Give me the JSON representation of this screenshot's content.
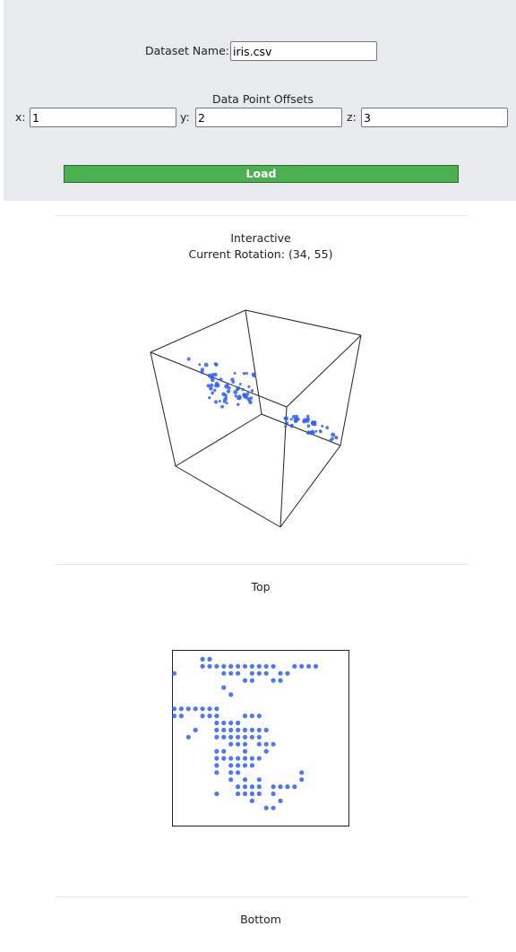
{
  "form": {
    "dataset_label": "Dataset Name:",
    "dataset_value": "iris.csv",
    "offsets_heading": "Data Point Offsets",
    "x_label": "x:",
    "x_value": "1",
    "y_label": "y:",
    "y_value": "2",
    "z_label": "z:",
    "z_value": "3",
    "load_label": "Load"
  },
  "interactive": {
    "title": "Interactive",
    "rotation_label": "Current Rotation:",
    "rotation_value": "(34, 55)"
  },
  "top_view": {
    "title": "Top"
  },
  "bottom_view": {
    "title": "Bottom"
  },
  "colors": {
    "panel_bg": "#e8ebee",
    "load_button": "#4caf50",
    "point": "#2f5fef"
  },
  "chart_data": [
    {
      "type": "scatter",
      "view": "interactive-3d",
      "rotation": [
        34,
        55
      ],
      "note_points_source": "iris.csv"
    },
    {
      "type": "scatter",
      "view": "top",
      "points": [
        [
          4,
          1
        ],
        [
          5,
          1
        ],
        [
          4,
          2
        ],
        [
          5,
          2
        ],
        [
          6,
          2
        ],
        [
          7,
          2
        ],
        [
          8,
          2
        ],
        [
          9,
          2
        ],
        [
          10,
          2
        ],
        [
          11,
          2
        ],
        [
          12,
          2
        ],
        [
          13,
          2
        ],
        [
          14,
          2
        ],
        [
          17,
          2
        ],
        [
          18,
          2
        ],
        [
          19,
          2
        ],
        [
          20,
          2
        ],
        [
          7,
          3
        ],
        [
          8,
          3
        ],
        [
          9,
          3
        ],
        [
          11,
          3
        ],
        [
          12,
          3
        ],
        [
          13,
          3
        ],
        [
          15,
          3
        ],
        [
          16,
          3
        ],
        [
          0,
          3
        ],
        [
          10,
          4
        ],
        [
          11,
          4
        ],
        [
          14,
          4
        ],
        [
          15,
          4
        ],
        [
          7,
          5
        ],
        [
          8,
          6
        ],
        [
          0,
          8
        ],
        [
          1,
          8
        ],
        [
          2,
          8
        ],
        [
          3,
          8
        ],
        [
          4,
          8
        ],
        [
          5,
          8
        ],
        [
          6,
          8
        ],
        [
          0,
          9
        ],
        [
          1,
          9
        ],
        [
          4,
          9
        ],
        [
          5,
          9
        ],
        [
          6,
          9
        ],
        [
          10,
          9
        ],
        [
          11,
          9
        ],
        [
          12,
          9
        ],
        [
          6,
          10
        ],
        [
          7,
          10
        ],
        [
          8,
          10
        ],
        [
          9,
          10
        ],
        [
          3,
          11
        ],
        [
          6,
          11
        ],
        [
          7,
          11
        ],
        [
          8,
          11
        ],
        [
          9,
          11
        ],
        [
          10,
          11
        ],
        [
          11,
          11
        ],
        [
          12,
          11
        ],
        [
          13,
          11
        ],
        [
          2,
          12
        ],
        [
          6,
          12
        ],
        [
          7,
          12
        ],
        [
          8,
          12
        ],
        [
          9,
          12
        ],
        [
          10,
          12
        ],
        [
          11,
          12
        ],
        [
          12,
          12
        ],
        [
          8,
          13
        ],
        [
          9,
          13
        ],
        [
          10,
          13
        ],
        [
          12,
          13
        ],
        [
          13,
          13
        ],
        [
          14,
          13
        ],
        [
          6,
          14
        ],
        [
          7,
          14
        ],
        [
          10,
          14
        ],
        [
          13,
          14
        ],
        [
          6,
          15
        ],
        [
          7,
          15
        ],
        [
          8,
          15
        ],
        [
          9,
          15
        ],
        [
          10,
          15
        ],
        [
          11,
          15
        ],
        [
          12,
          15
        ],
        [
          6,
          16
        ],
        [
          8,
          16
        ],
        [
          9,
          16
        ],
        [
          10,
          16
        ],
        [
          11,
          16
        ],
        [
          6,
          17
        ],
        [
          8,
          17
        ],
        [
          9,
          17
        ],
        [
          18,
          17
        ],
        [
          8,
          18
        ],
        [
          10,
          18
        ],
        [
          12,
          18
        ],
        [
          18,
          18
        ],
        [
          9,
          19
        ],
        [
          10,
          19
        ],
        [
          11,
          19
        ],
        [
          12,
          19
        ],
        [
          14,
          19
        ],
        [
          15,
          19
        ],
        [
          16,
          19
        ],
        [
          17,
          19
        ],
        [
          6,
          20
        ],
        [
          9,
          20
        ],
        [
          10,
          20
        ],
        [
          11,
          20
        ],
        [
          12,
          20
        ],
        [
          14,
          20
        ],
        [
          11,
          21
        ],
        [
          15,
          21
        ],
        [
          13,
          22
        ],
        [
          14,
          22
        ]
      ]
    }
  ]
}
